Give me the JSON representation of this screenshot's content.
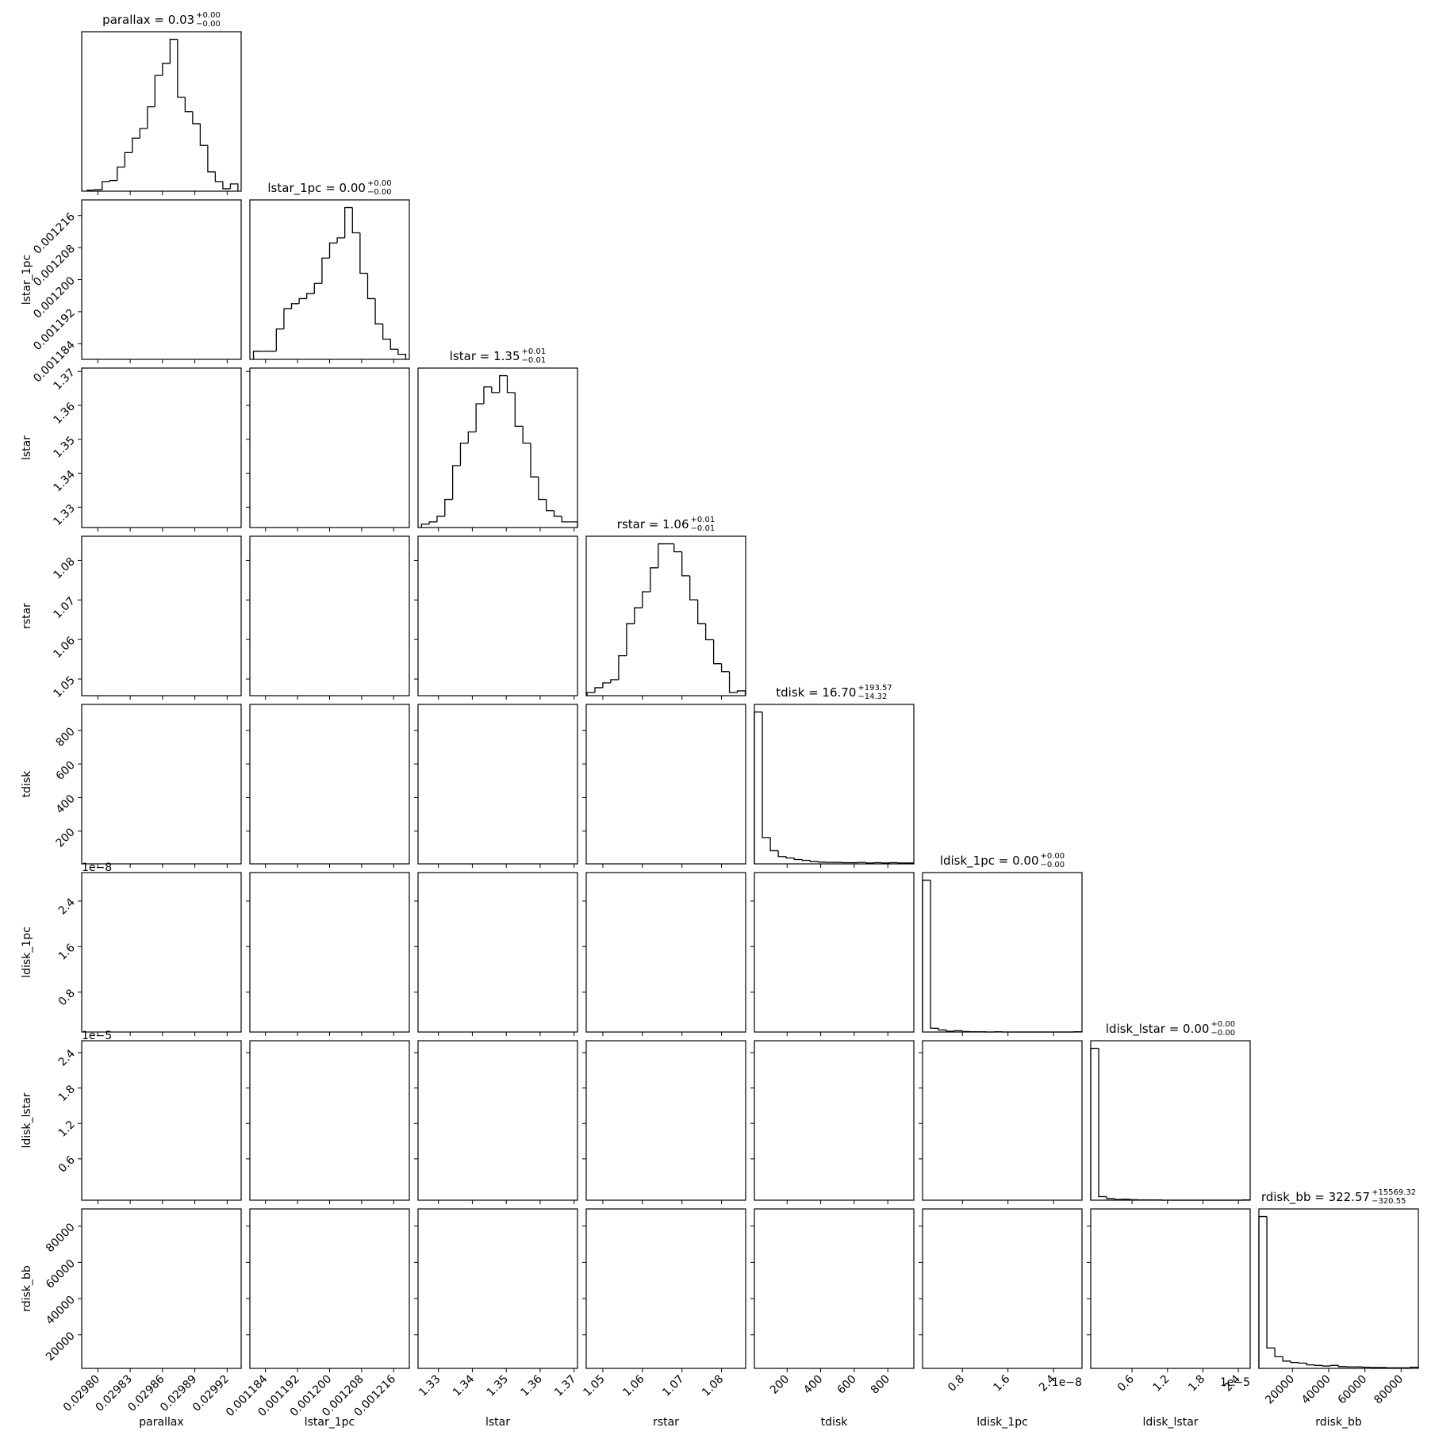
{
  "chart_data": {
    "type": "corner",
    "parameters": [
      {
        "name": "parallax",
        "title": "parallax = 0.03",
        "upper": "+0.00",
        "lower": "−0.00",
        "xlim": [
          0.029785,
          0.029933
        ],
        "ticks": [
          {
            "value": 0.0298,
            "label": "0.02980"
          },
          0.02983,
          0.02986,
          0.02989,
          0.02992
        ],
        "bins": [
          0.02979,
          0.029797,
          0.029804,
          0.029811,
          0.029818,
          0.029825,
          0.029832,
          0.029839,
          0.029846,
          0.029853,
          0.02986,
          0.029867,
          0.029874,
          0.029881,
          0.029888,
          0.029895,
          0.029902,
          0.029909,
          0.029916,
          0.029923,
          0.02993
        ],
        "counts": [
          2,
          3,
          20,
          22,
          50,
          80,
          110,
          130,
          175,
          240,
          265,
          315,
          195,
          165,
          140,
          95,
          40,
          20,
          5,
          15
        ]
      },
      {
        "name": "lstar_1pc",
        "title": "lstar_1pc = 0.00",
        "upper": "+0.00",
        "lower": "−0.00",
        "xlim": [
          0.0011801,
          0.0012199
        ],
        "ticks": [
          0.001184,
          0.001192,
          {
            "value": 0.0012,
            "label": "0.001200"
          },
          0.001208,
          0.001216
        ],
        "bins": [
          0.001181,
          0.0011829,
          0.0011848,
          0.0011867,
          0.0011886,
          0.0011905,
          0.0011924,
          0.0011943,
          0.0011962,
          0.0011981,
          0.0012,
          0.0012019,
          0.0012038,
          0.0012057,
          0.0012076,
          0.0012095,
          0.0012114,
          0.0012133,
          0.0012152,
          0.0012171,
          0.001219
        ],
        "counts": [
          16,
          16,
          16,
          60,
          100,
          110,
          120,
          130,
          150,
          200,
          230,
          240,
          300,
          250,
          170,
          120,
          70,
          40,
          20,
          10
        ]
      },
      {
        "name": "lstar",
        "title": "lstar = 1.35",
        "upper": "+0.01",
        "lower": "−0.01",
        "xlim": [
          1.324,
          1.371
        ],
        "ticks": [
          1.33,
          1.34,
          1.35,
          1.36,
          1.37
        ],
        "bins": [
          1.325,
          1.3273,
          1.3296,
          1.3319,
          1.3342,
          1.3365,
          1.3388,
          1.3411,
          1.3434,
          1.3457,
          1.348,
          1.3503,
          1.3526,
          1.3549,
          1.3572,
          1.3595,
          1.3618,
          1.3641,
          1.3664,
          1.3687,
          1.371
        ],
        "counts": [
          6,
          10,
          20,
          50,
          110,
          150,
          170,
          220,
          250,
          240,
          270,
          240,
          180,
          150,
          90,
          50,
          30,
          20,
          10,
          10
        ]
      },
      {
        "name": "rstar",
        "title": "rstar = 1.06",
        "upper": "+0.01",
        "lower": "−0.01",
        "xlim": [
          1.0458,
          1.0861
        ],
        "ticks": [
          1.05,
          1.06,
          1.07,
          1.08
        ],
        "bins": [
          1.046,
          1.048,
          1.05,
          1.052,
          1.054,
          1.056,
          1.058,
          1.06,
          1.062,
          1.064,
          1.066,
          1.068,
          1.07,
          1.072,
          1.074,
          1.076,
          1.078,
          1.08,
          1.082,
          1.084,
          1.086
        ],
        "counts": [
          4,
          10,
          16,
          20,
          50,
          90,
          110,
          130,
          160,
          190,
          190,
          180,
          150,
          120,
          90,
          70,
          40,
          30,
          4,
          6
        ]
      },
      {
        "name": "tdisk",
        "title": "tdisk = 16.70",
        "upper": "+193.57",
        "lower": "−14.32",
        "xlim": [
          5,
          955
        ],
        "ticks": [
          200,
          400,
          600,
          800
        ],
        "bins": [
          5,
          52.5,
          100,
          147.5,
          195,
          242.5,
          290,
          337.5,
          385,
          432.5,
          480,
          527.5,
          575,
          622.5,
          670,
          717.5,
          765,
          812.5,
          860,
          907.5,
          955
        ],
        "counts": [
          520,
          90,
          45,
          25,
          20,
          15,
          12,
          8,
          6,
          5,
          5,
          4,
          4,
          5,
          3,
          4,
          3,
          4,
          3,
          3
        ]
      },
      {
        "name": "ldisk_1pc",
        "title": "ldisk_1pc = 0.00",
        "upper": "+0.00",
        "lower": "−0.00",
        "offset": "1e−8",
        "xlim": [
          1e-09,
          2.9e-08
        ],
        "ticks": [
          {
            "value": 8e-09,
            "label": "0.8"
          },
          {
            "value": 1.6e-08,
            "label": "1.6"
          },
          {
            "value": 2.4e-08,
            "label": "2.4"
          }
        ],
        "bins": [
          1e-09,
          2.4e-09,
          3.8e-09,
          5.2e-09,
          6.6e-09,
          8e-09,
          9.4e-09,
          1.08e-08,
          1.22e-08,
          1.36e-08,
          1.5e-08,
          1.64e-08,
          1.78e-08,
          1.92e-08,
          2.06e-08,
          2.2e-08,
          2.34e-08,
          2.48e-08,
          2.62e-08,
          2.76e-08,
          2.9e-08
        ],
        "counts": [
          600,
          15,
          8,
          3,
          5,
          2,
          1,
          1,
          0,
          1,
          0,
          0,
          0,
          0,
          0,
          0,
          0,
          0,
          0,
          1
        ]
      },
      {
        "name": "ldisk_lstar",
        "title": "ldisk_lstar = 0.00",
        "upper": "+0.00",
        "lower": "−0.00",
        "offset": "1e−5",
        "xlim": [
          -1e-06,
          2.6e-05
        ],
        "ticks": [
          {
            "value": 6e-06,
            "label": "0.6"
          },
          {
            "value": 1.2e-05,
            "label": "1.2"
          },
          {
            "value": 1.8e-05,
            "label": "1.8"
          },
          {
            "value": 2.4e-05,
            "label": "2.4"
          }
        ],
        "bins": [
          -1e-06,
          3.5e-07,
          1.7e-06,
          3.05e-06,
          4.4e-06,
          5.75e-06,
          7.1e-06,
          8.45e-06,
          9.8e-06,
          1.115e-05,
          1.25e-05,
          1.385e-05,
          1.52e-05,
          1.655e-05,
          1.79e-05,
          1.925e-05,
          2.06e-05,
          2.195e-05,
          2.33e-05,
          2.465e-05,
          2.6e-05
        ],
        "counts": [
          600,
          14,
          6,
          3,
          4,
          2,
          1,
          1,
          1,
          0,
          0,
          0,
          0,
          0,
          0,
          0,
          0,
          0,
          0,
          1
        ]
      },
      {
        "name": "rdisk_bb",
        "title": "rdisk_bb = 322.57",
        "upper": "+15569.32",
        "lower": "−320.55",
        "xlim": [
          1500,
          89500
        ],
        "ticks": [
          20000,
          40000,
          60000,
          80000
        ],
        "bins": [
          1500,
          5900,
          10300,
          14700,
          19100,
          23500,
          27900,
          32300,
          36700,
          41100,
          45500,
          49900,
          54300,
          58700,
          63100,
          67500,
          71900,
          76300,
          80700,
          85100,
          89500
        ],
        "counts": [
          520,
          70,
          40,
          25,
          20,
          18,
          12,
          10,
          8,
          10,
          6,
          5,
          5,
          4,
          3,
          3,
          2,
          2,
          2,
          4
        ]
      }
    ]
  }
}
